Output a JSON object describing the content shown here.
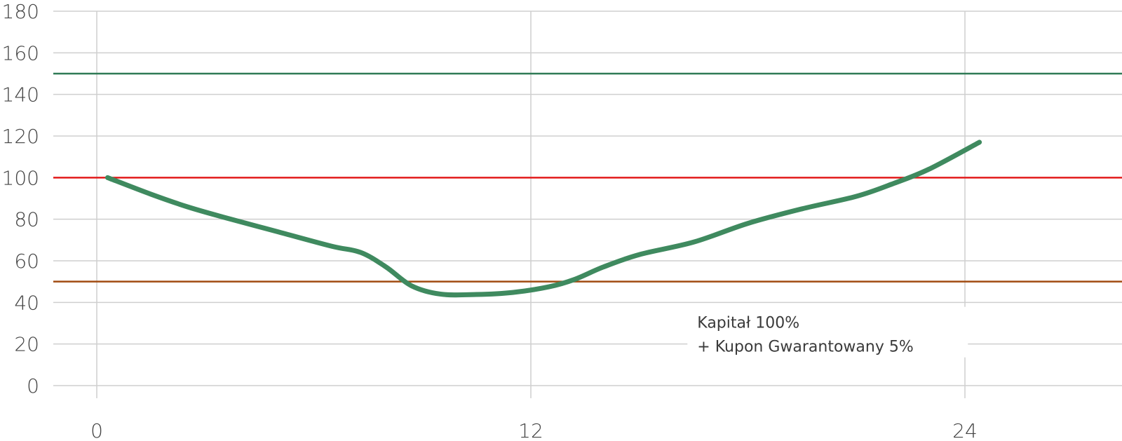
{
  "chart_data": {
    "type": "line",
    "title": "",
    "xlabel": "",
    "ylabel": "",
    "x_ticks": [
      "0",
      "12",
      "24"
    ],
    "y_ticks": [
      "0",
      "20",
      "40",
      "60",
      "80",
      "100",
      "120",
      "140",
      "160",
      "180"
    ],
    "xlim": [
      -1.2,
      28.5
    ],
    "ylim": [
      0,
      180
    ],
    "grid": true,
    "colors": {
      "series": "#3f8a5f",
      "line_150": "#2f7a55",
      "line_100": "#e31b1b",
      "line_50": "#a14b11",
      "grid": "#cfcfcf"
    },
    "reference_lines": [
      {
        "y": 150,
        "color": "#2f7a55"
      },
      {
        "y": 100,
        "color": "#e31b1b"
      },
      {
        "y": 50,
        "color": "#a14b11"
      }
    ],
    "series": [
      {
        "x": [
          0.3,
          1.5,
          2.5,
          3.5,
          5,
          6.5,
          7.3,
          8,
          8.7,
          9.5,
          10.5,
          11.5,
          12.5,
          13.2,
          14,
          15,
          16.5,
          18,
          19.5,
          21,
          22,
          23,
          24.4
        ],
        "y": [
          100,
          92,
          86,
          81,
          74,
          67,
          64,
          57,
          48,
          44,
          43.8,
          44.8,
          47.5,
          51,
          57,
          63,
          69,
          78,
          85,
          91,
          97,
          104,
          117
        ]
      }
    ],
    "annotations": [
      {
        "line1": "Kapitał 100%",
        "line2": "+ Kupon Gwarantowany 5%",
        "x": 16.6,
        "y": 21
      }
    ]
  }
}
